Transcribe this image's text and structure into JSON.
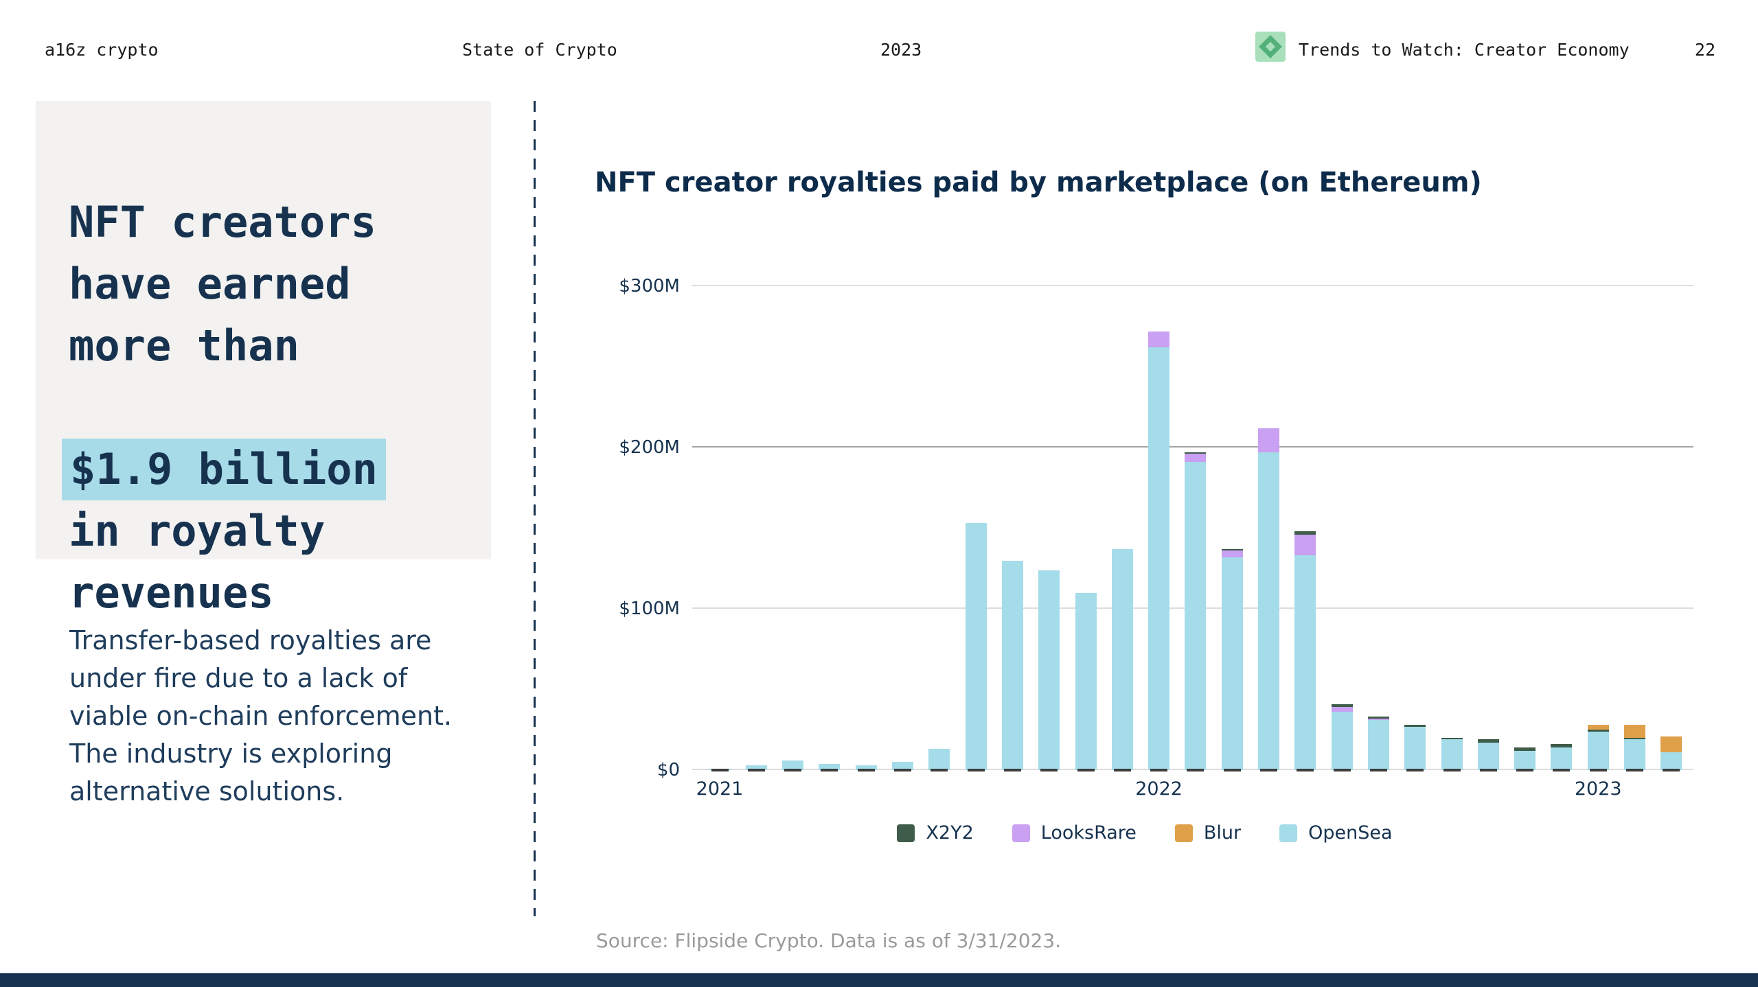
{
  "topbar": {
    "brand": "a16z crypto",
    "report": "State of Crypto",
    "year": "2023",
    "section": "Trends to Watch: Creator Economy",
    "page": "22"
  },
  "left": {
    "headline_pre": "NFT creators\nhave earned\nmore than",
    "headline_highlight": "$1.9 billion",
    "headline_post": "in royalty\nrevenues",
    "body": "Transfer-based royalties are\nunder fire due to a lack of\nviable on-chain enforcement.\nThe industry is exploring\nalternative solutions."
  },
  "chart": {
    "title": "NFT creator royalties paid by marketplace (on Ethereum)",
    "source": "Source: Flipside Crypto. Data is as of 3/31/2023."
  },
  "colors": {
    "navy": "#16324f",
    "highlight": "#a7dbe8",
    "panel_bg": "#f3f2f1",
    "source_gray": "#9a9a9a"
  },
  "chart_data": {
    "type": "bar",
    "stacked": true,
    "title": "NFT creator royalties paid by marketplace (on Ethereum)",
    "unit": "$M",
    "ylim": [
      0,
      300
    ],
    "grid": true,
    "legend_position": "bottom",
    "months": [
      "Jan 2021",
      "Feb 2021",
      "Mar 2021",
      "Apr 2021",
      "May 2021",
      "Jun 2021",
      "Jul 2021",
      "Aug 2021",
      "Sep 2021",
      "Oct 2021",
      "Nov 2021",
      "Dec 2021",
      "Jan 2022",
      "Feb 2022",
      "Mar 2022",
      "Apr 2022",
      "May 2022",
      "Jun 2022",
      "Jul 2022",
      "Aug 2022",
      "Sep 2022",
      "Oct 2022",
      "Nov 2022",
      "Dec 2022",
      "Jan 2023",
      "Feb 2023",
      "Mar 2023"
    ],
    "series": [
      {
        "name": "OpenSea",
        "color": "#a5dce9",
        "values": [
          1,
          3,
          6,
          4,
          3,
          5,
          13,
          153,
          130,
          124,
          110,
          137,
          262,
          191,
          132,
          197,
          133,
          36,
          31,
          27,
          19,
          17,
          12,
          14,
          24,
          19,
          11
        ]
      },
      {
        "name": "LooksRare",
        "color": "#c9a0f2",
        "values": [
          0,
          0,
          0,
          0,
          0,
          0,
          0,
          0,
          0,
          0,
          0,
          0,
          10,
          5,
          4,
          15,
          13,
          3,
          1,
          0,
          0,
          0,
          0,
          0,
          0,
          0,
          0
        ]
      },
      {
        "name": "X2Y2",
        "color": "#3e5c49",
        "values": [
          0,
          0,
          0,
          0,
          0,
          0,
          0,
          0,
          0,
          0,
          0,
          0,
          0,
          1,
          1,
          0,
          2,
          2,
          1,
          1,
          1,
          2,
          2,
          2,
          1,
          1,
          0
        ]
      },
      {
        "name": "Blur",
        "color": "#dfa049",
        "values": [
          0,
          0,
          0,
          0,
          0,
          0,
          0,
          0,
          0,
          0,
          0,
          0,
          0,
          0,
          0,
          0,
          0,
          0,
          0,
          0,
          0,
          0,
          0,
          0,
          3,
          8,
          10
        ]
      }
    ],
    "stack_order_bottom_to_top": [
      "OpenSea",
      "LooksRare",
      "X2Y2",
      "Blur"
    ],
    "yticks": [
      {
        "label": "$0",
        "value": 0
      },
      {
        "label": "$100M",
        "value": 100
      },
      {
        "label": "$200M",
        "value": 200,
        "strong": true
      },
      {
        "label": "$300M",
        "value": 300
      }
    ],
    "x_year_ticks": [
      {
        "label": "2021",
        "month_index": 0
      },
      {
        "label": "2022",
        "month_index": 12
      },
      {
        "label": "2023",
        "month_index": 24
      }
    ],
    "legend": [
      "X2Y2",
      "LooksRare",
      "Blur",
      "OpenSea"
    ]
  }
}
